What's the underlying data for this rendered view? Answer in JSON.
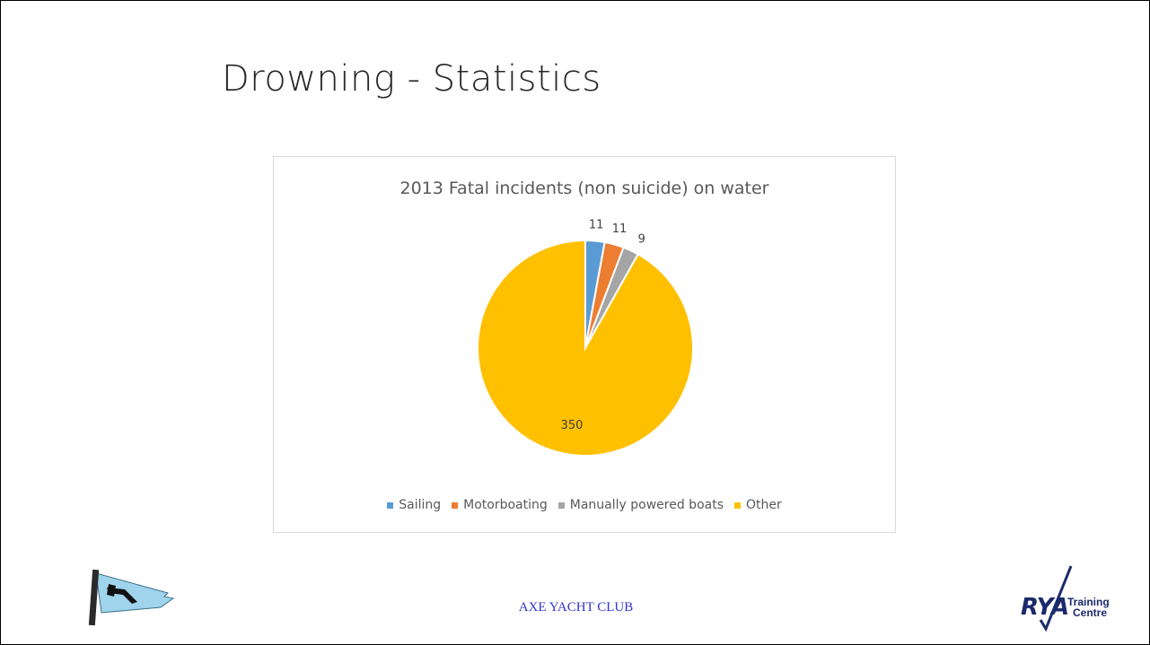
{
  "slide": {
    "title": "Drowning - Statistics",
    "footer": "AXE YACHT CLUB"
  },
  "logos": {
    "left_icon": "club-burgee-icon",
    "right_icon": "rya-training-centre-logo",
    "rya_text": "RYA",
    "rya_line1": "Training",
    "rya_line2": "Centre"
  },
  "colors": {
    "Sailing": "#5b9bd5",
    "Motorboating": "#ed7d31",
    "Manually powered boats": "#a5a5a5",
    "Other": "#ffc000"
  },
  "chart_data": {
    "type": "pie",
    "title": "2013 Fatal incidents (non suicide) on water",
    "categories": [
      "Sailing",
      "Motorboating",
      "Manually powered boats",
      "Other"
    ],
    "values": [
      11,
      11,
      9,
      350
    ],
    "data_labels": [
      "11",
      "11",
      "9",
      "350"
    ],
    "legend_position": "bottom"
  }
}
